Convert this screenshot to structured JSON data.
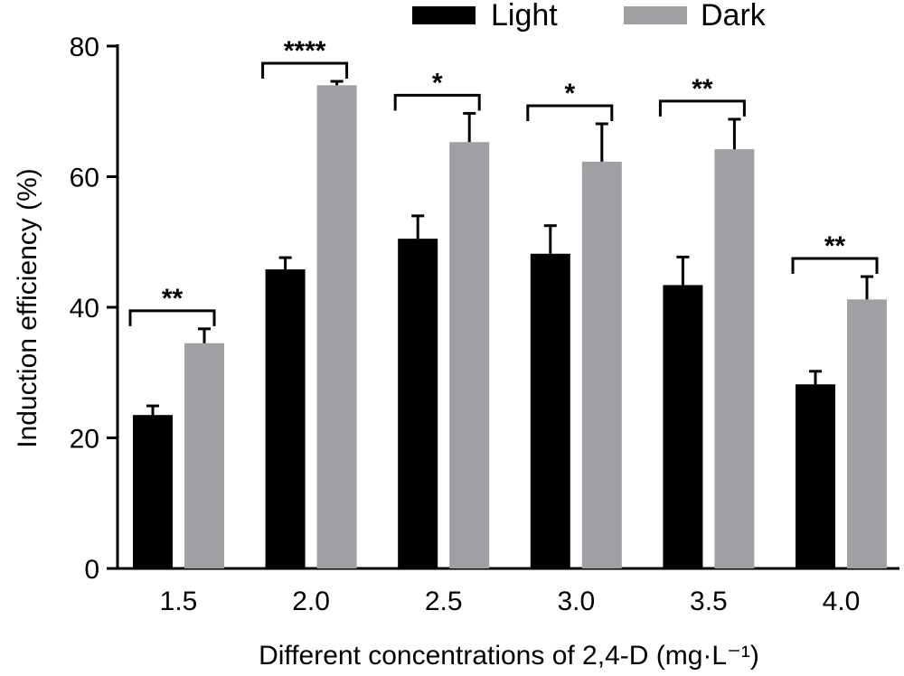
{
  "chart_data": {
    "type": "bar",
    "title": "",
    "xlabel": "Different concentrations of 2,4-D (mg·L⁻¹)",
    "ylabel": "Induction efficiency (%)",
    "ylim": [
      0,
      80
    ],
    "yticks": [
      "0",
      "20",
      "40",
      "60",
      "80"
    ],
    "categories": [
      "1.5",
      "2.0",
      "2.5",
      "3.0",
      "3.5",
      "4.0"
    ],
    "series": [
      {
        "name": "Light",
        "color": "#000000",
        "values": [
          23.5,
          45.8,
          50.5,
          48.2,
          43.4,
          28.2
        ],
        "errors": [
          1.4,
          1.8,
          3.5,
          4.3,
          4.3,
          2.0
        ]
      },
      {
        "name": "Dark",
        "color": "#a0a0a4",
        "values": [
          34.5,
          74.0,
          65.3,
          62.3,
          64.2,
          41.2
        ],
        "errors": [
          2.2,
          0.6,
          4.4,
          5.8,
          4.6,
          3.5
        ]
      }
    ],
    "significance": [
      "**",
      "****",
      "*",
      "*",
      "**",
      "**"
    ],
    "legend": {
      "position": "top"
    },
    "grid": false
  }
}
